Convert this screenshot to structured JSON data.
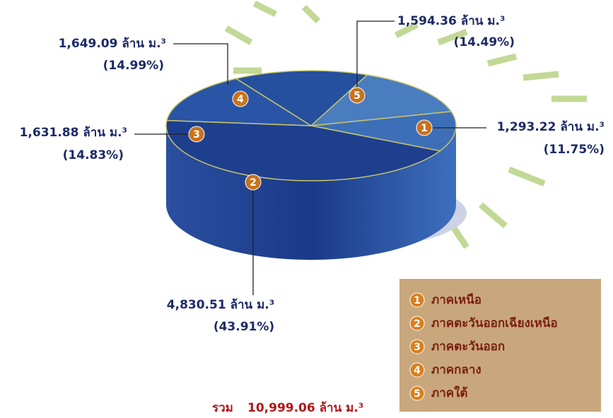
{
  "chart_data": {
    "type": "pie",
    "categories": [
      "ภาคเหนือ",
      "ภาคตะวันออกเฉียงเหนือ",
      "ภาคตะวันออก",
      "ภาคกลาง",
      "ภาคใต้"
    ],
    "markers": [
      "1",
      "2",
      "3",
      "4",
      "5"
    ],
    "values": [
      1293.22,
      4830.51,
      1631.88,
      1649.09,
      1594.36
    ],
    "value_labels": [
      "1,293.22 ล้าน ม.³",
      "4,830.51 ล้าน ม.³",
      "1,631.88 ล้าน ม.³",
      "1,649.09 ล้าน ม.³",
      "1,594.36 ล้าน ม.³"
    ],
    "shares": [
      11.75,
      43.91,
      14.83,
      14.99,
      14.49
    ],
    "share_labels": [
      "(11.75%)",
      "(43.91%)",
      "(14.83%)",
      "(14.99%)",
      "(14.49%)"
    ],
    "colors": [
      "#3d6fb8",
      "#1d3f8e",
      "#2a55a6",
      "#24509e",
      "#4a7cc0"
    ],
    "total_label": "รวม",
    "total": 10999.06,
    "total_value_label": "10,999.06 ล้าน ม.³"
  }
}
